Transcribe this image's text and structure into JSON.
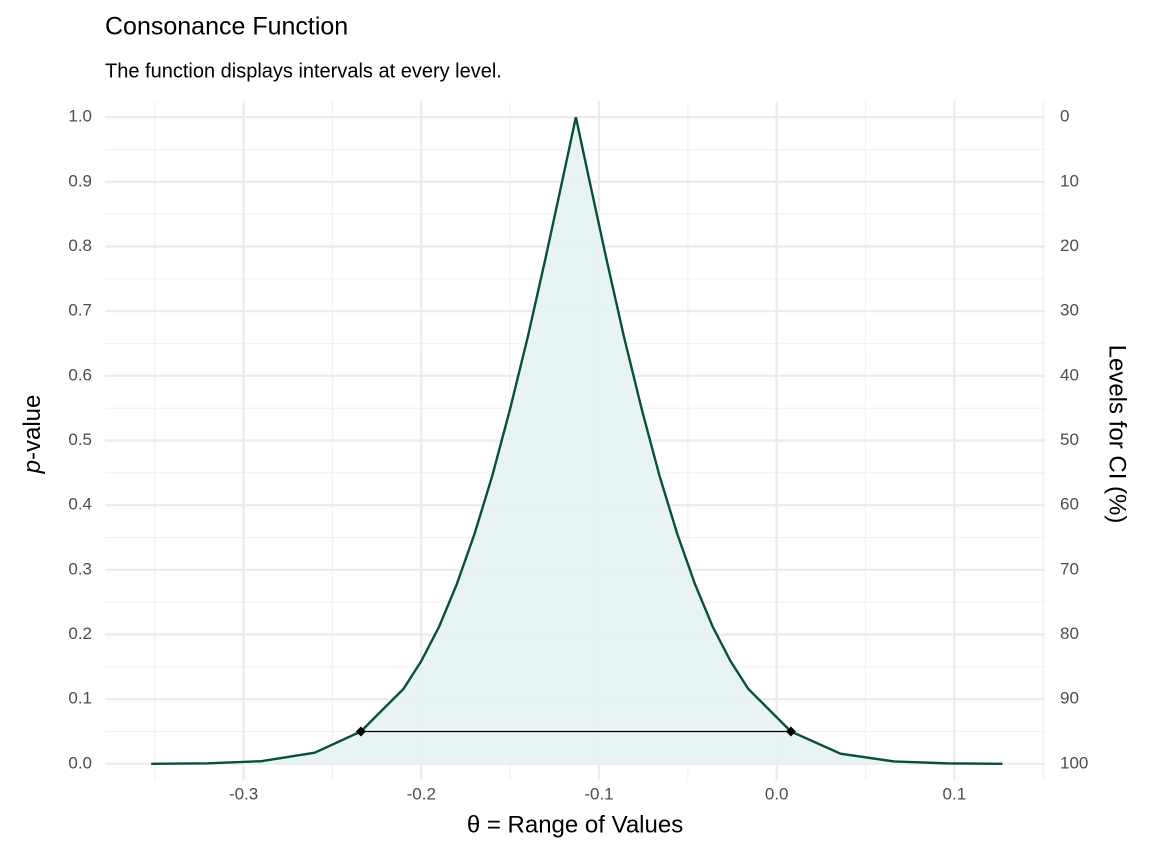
{
  "chart_data": {
    "type": "line",
    "title": "Consonance Function",
    "subtitle": "The function displays intervals at every level.",
    "x_label": "θ =  Range of Values",
    "y_label": [
      "p",
      "-value"
    ],
    "y2_label": "Levels for CI (%)",
    "x": [
      -0.352,
      -0.32,
      -0.29,
      -0.26,
      -0.234,
      -0.21,
      -0.2,
      -0.19,
      -0.18,
      -0.17,
      -0.16,
      -0.15,
      -0.14,
      -0.13,
      -0.12,
      -0.113,
      -0.106,
      -0.096,
      -0.086,
      -0.076,
      -0.066,
      -0.056,
      -0.046,
      -0.036,
      -0.026,
      -0.016,
      0.008,
      0.036,
      0.066,
      0.096,
      0.127
    ],
    "series": [
      {
        "color": "#07503e",
        "fill": "#e6f3f2",
        "values": [
          0.0001,
          0.0008,
          0.0041,
          0.0172,
          0.05,
          0.116,
          0.159,
          0.212,
          0.278,
          0.356,
          0.446,
          0.549,
          0.661,
          0.783,
          0.91,
          1,
          0.91,
          0.783,
          0.661,
          0.549,
          0.446,
          0.356,
          0.278,
          0.212,
          0.159,
          0.116,
          0.05,
          0.0157,
          0.0037,
          0.0007,
          0.0001
        ]
      }
    ],
    "interval": {
      "x": [
        -0.234,
        0.008
      ],
      "y": [
        0.05,
        0.05
      ],
      "color": "#000000"
    },
    "xlim": [
      -0.378,
      0.151
    ],
    "ylim": [
      -0.025,
      1.025
    ],
    "y2lim": [
      102.5,
      -2.5
    ],
    "xticks": [
      -0.3,
      -0.2,
      -0.1,
      {
        "value": 0,
        "label": "0.0"
      },
      0.1
    ],
    "x_minor_ticks": [
      -0.35,
      -0.25,
      -0.15,
      -0.05,
      0.05,
      0.15
    ],
    "yticks": [
      {
        "value": 0,
        "label": "0.0"
      },
      0.1,
      0.2,
      0.3,
      0.4,
      0.5,
      0.6,
      0.7,
      0.8,
      0.9,
      {
        "value": 1,
        "label": "1.0"
      }
    ],
    "y_minor_ticks": [
      0.05,
      0.15,
      0.25,
      0.35,
      0.45,
      0.55,
      0.65,
      0.75,
      0.85,
      0.95
    ],
    "y2ticks": [
      0,
      10,
      20,
      30,
      40,
      50,
      60,
      70,
      80,
      90,
      100
    ],
    "grid": true
  }
}
